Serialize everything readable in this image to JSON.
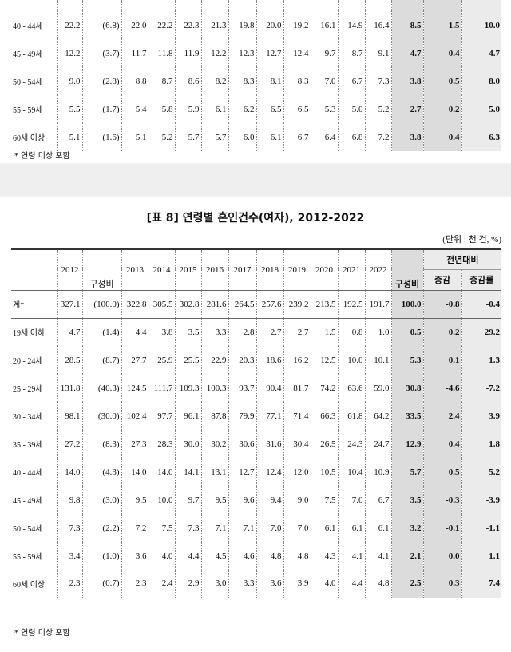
{
  "top_table": {
    "rows": [
      {
        "label": "40 - 44세",
        "cells": [
          "22.2",
          "(6.8)",
          "22.0",
          "22.2",
          "22.3",
          "21.3",
          "19.8",
          "20.0",
          "19.2",
          "16.1",
          "14.9",
          "16.4",
          "8.5",
          "1.5",
          "10.0"
        ]
      },
      {
        "label": "45 - 49세",
        "cells": [
          "12.2",
          "(3.7)",
          "11.7",
          "11.8",
          "11.9",
          "12.2",
          "12.3",
          "12.7",
          "12.4",
          "9.7",
          "8.7",
          "9.1",
          "4.7",
          "0.4",
          "4.7"
        ]
      },
      {
        "label": "50 - 54세",
        "cells": [
          "9.0",
          "(2.8)",
          "8.8",
          "8.7",
          "8.6",
          "8.2",
          "8.3",
          "8.1",
          "8.3",
          "7.0",
          "6.7",
          "7.3",
          "3.8",
          "0.5",
          "8.0"
        ]
      },
      {
        "label": "55 - 59세",
        "cells": [
          "5.5",
          "(1.7)",
          "5.4",
          "5.8",
          "5.9",
          "6.1",
          "6.2",
          "6.5",
          "6.5",
          "5.3",
          "5.0",
          "5.2",
          "2.7",
          "0.2",
          "5.0"
        ]
      },
      {
        "label": "60세 이상",
        "cells": [
          "5.1",
          "(1.6)",
          "5.1",
          "5.2",
          "5.7",
          "5.7",
          "6.0",
          "6.1",
          "6.7",
          "6.4",
          "6.8",
          "7.2",
          "3.8",
          "0.4",
          "6.3"
        ]
      }
    ],
    "footnote": "* 연령 미상 포함"
  },
  "table": {
    "title": "[표 8] 연령별 혼인건수(여자), 2012-2022",
    "unit": "(단위 : 천 건, %)",
    "columns": [
      "2012",
      "구성비",
      "2013",
      "2014",
      "2015",
      "2016",
      "2017",
      "2018",
      "2019",
      "2020",
      "2021",
      "2022",
      "구성비"
    ],
    "group_header": "전년대비",
    "group_columns": [
      "증감",
      "증감률"
    ],
    "rows": [
      {
        "label": "계*",
        "cells": [
          "327.1",
          "(100.0)",
          "322.8",
          "305.5",
          "302.8",
          "281.6",
          "264.5",
          "257.6",
          "239.2",
          "213.5",
          "192.5",
          "191.7",
          "100.0",
          "-0.8",
          "-0.4"
        ]
      },
      {
        "label": "19세 이하",
        "cells": [
          "4.7",
          "(1.4)",
          "4.4",
          "3.8",
          "3.5",
          "3.3",
          "2.8",
          "2.7",
          "2.7",
          "1.5",
          "0.8",
          "1.0",
          "0.5",
          "0.2",
          "29.2"
        ]
      },
      {
        "label": "20 - 24세",
        "cells": [
          "28.5",
          "(8.7)",
          "27.7",
          "25.9",
          "25.5",
          "22.9",
          "20.3",
          "18.6",
          "16.2",
          "12.5",
          "10.0",
          "10.1",
          "5.3",
          "0.1",
          "1.3"
        ]
      },
      {
        "label": "25 - 29세",
        "cells": [
          "131.8",
          "(40.3)",
          "124.5",
          "111.7",
          "109.3",
          "100.3",
          "93.7",
          "90.4",
          "81.7",
          "74.2",
          "63.6",
          "59.0",
          "30.8",
          "-4.6",
          "-7.2"
        ]
      },
      {
        "label": "30 - 34세",
        "cells": [
          "98.1",
          "(30.0)",
          "102.4",
          "97.7",
          "96.1",
          "87.8",
          "79.9",
          "77.1",
          "71.4",
          "66.3",
          "61.8",
          "64.2",
          "33.5",
          "2.4",
          "3.9"
        ]
      },
      {
        "label": "35 - 39세",
        "cells": [
          "27.2",
          "(8.3)",
          "27.3",
          "28.3",
          "30.0",
          "30.2",
          "30.6",
          "31.6",
          "30.4",
          "26.5",
          "24.3",
          "24.7",
          "12.9",
          "0.4",
          "1.8"
        ]
      },
      {
        "label": "40 - 44세",
        "cells": [
          "14.0",
          "(4.3)",
          "14.0",
          "14.0",
          "14.1",
          "13.1",
          "12.7",
          "12.4",
          "12.0",
          "10.5",
          "10.4",
          "10.9",
          "5.7",
          "0.5",
          "5.2"
        ]
      },
      {
        "label": "45 - 49세",
        "cells": [
          "9.8",
          "(3.0)",
          "9.5",
          "10.0",
          "9.7",
          "9.5",
          "9.6",
          "9.4",
          "9.0",
          "7.5",
          "7.0",
          "6.7",
          "3.5",
          "-0.3",
          "-3.9"
        ]
      },
      {
        "label": "50 - 54세",
        "cells": [
          "7.3",
          "(2.2)",
          "7.2",
          "7.5",
          "7.3",
          "7.1",
          "7.1",
          "7.0",
          "7.0",
          "6.1",
          "6.1",
          "6.1",
          "3.2",
          "-0.1",
          "-1.1"
        ]
      },
      {
        "label": "55 - 59세",
        "cells": [
          "3.4",
          "(1.0)",
          "3.6",
          "4.0",
          "4.4",
          "4.5",
          "4.6",
          "4.8",
          "4.8",
          "4.3",
          "4.1",
          "4.1",
          "2.1",
          "0.0",
          "1.1"
        ]
      },
      {
        "label": "60세 이상",
        "cells": [
          "2.3",
          "(0.7)",
          "2.3",
          "2.4",
          "2.9",
          "3.0",
          "3.3",
          "3.6",
          "3.9",
          "4.0",
          "4.4",
          "4.8",
          "2.5",
          "0.3",
          "7.4"
        ]
      }
    ],
    "footnote": "* 연령 미상 포함"
  }
}
